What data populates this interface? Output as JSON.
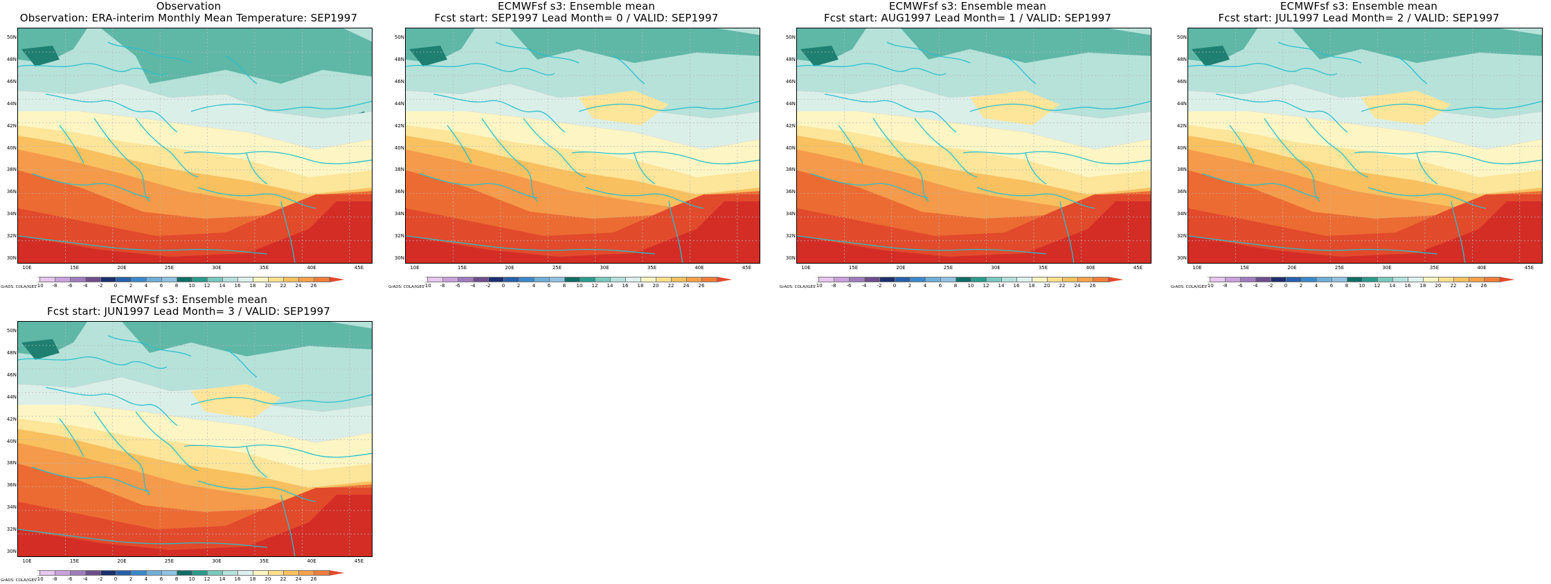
{
  "page": {
    "background": "#ffffff"
  },
  "panels": [
    {
      "title_line1": "Observation",
      "title_line2": "Observation: ERA-interim Monthly Mean Temperature: SEP1997"
    },
    {
      "title_line1": "ECMWFsf s3: Ensemble mean",
      "title_line2": "Fcst start: SEP1997  Lead Month= 0 / VALID: SEP1997"
    },
    {
      "title_line1": "ECMWFsf s3: Ensemble mean",
      "title_line2": "Fcst start: AUG1997  Lead Month= 1 / VALID: SEP1997"
    },
    {
      "title_line1": "ECMWFsf s3: Ensemble mean",
      "title_line2": "Fcst start: JUL1997  Lead Month= 2 / VALID: SEP1997"
    },
    {
      "title_line1": "ECMWFsf s3: Ensemble mean",
      "title_line2": "Fcst start: JUN1997  Lead Month= 3 / VALID: SEP1997"
    }
  ],
  "lat_labels": [
    "50N",
    "48N",
    "46N",
    "44N",
    "42N",
    "40N",
    "38N",
    "36N",
    "34N",
    "32N",
    "30N"
  ],
  "lon_labels": [
    "10E",
    "15E",
    "20E",
    "25E",
    "30E",
    "35E",
    "40E",
    "45E"
  ],
  "credit": "GrADS: COLA/IGES",
  "colorbar": {
    "ticks": [
      "-10",
      "-8",
      "-6",
      "-4",
      "-2",
      "0",
      "2",
      "4",
      "6",
      "8",
      "10",
      "12",
      "14",
      "16",
      "18",
      "20",
      "22",
      "24",
      "26"
    ],
    "colors": [
      "#ffffff",
      "#e7c6ef",
      "#c9a2dc",
      "#a07cbd",
      "#6d4e8c",
      "#1c2f6e",
      "#2760a8",
      "#3b88c8",
      "#6eaed9",
      "#8fc3e2",
      "#0f6e66",
      "#2a9b8c",
      "#79c9bd",
      "#b4e1dc",
      "#def1ee",
      "#fff5c2",
      "#fee08b",
      "#fcc160",
      "#f9a14a",
      "#f07d37",
      "#e2492c"
    ]
  },
  "map_colors": {
    "coast": "#2bbfcc",
    "grid": "#b8b8b8"
  }
}
